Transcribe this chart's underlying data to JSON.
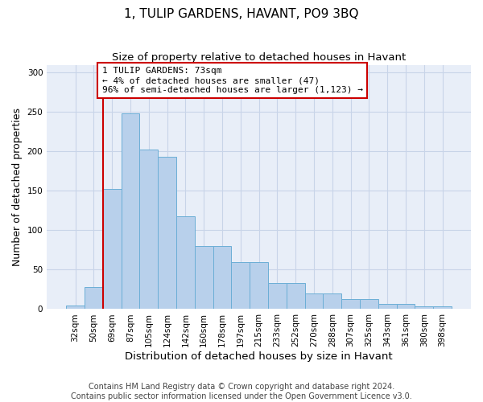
{
  "title": "1, TULIP GARDENS, HAVANT, PO9 3BQ",
  "subtitle": "Size of property relative to detached houses in Havant",
  "xlabel": "Distribution of detached houses by size in Havant",
  "ylabel": "Number of detached properties",
  "categories": [
    "32sqm",
    "50sqm",
    "69sqm",
    "87sqm",
    "105sqm",
    "124sqm",
    "142sqm",
    "160sqm",
    "178sqm",
    "197sqm",
    "215sqm",
    "233sqm",
    "252sqm",
    "270sqm",
    "288sqm",
    "307sqm",
    "325sqm",
    "343sqm",
    "361sqm",
    "380sqm",
    "398sqm"
  ],
  "values": [
    5,
    28,
    152,
    248,
    202,
    193,
    118,
    80,
    80,
    60,
    60,
    33,
    33,
    20,
    20,
    13,
    13,
    7,
    7,
    4,
    4
  ],
  "bar_color": "#b8d0eb",
  "bar_edge_color": "#6baed6",
  "property_line_index": 2,
  "property_line_color": "#cc0000",
  "annotation_line1": "1 TULIP GARDENS: 73sqm",
  "annotation_line2": "← 4% of detached houses are smaller (47)",
  "annotation_line3": "96% of semi-detached houses are larger (1,123) →",
  "annotation_box_color": "#ffffff",
  "annotation_box_edge": "#cc0000",
  "ylim": [
    0,
    310
  ],
  "yticks": [
    0,
    50,
    100,
    150,
    200,
    250,
    300
  ],
  "grid_color": "#c8d4e8",
  "background_color": "#e8eef8",
  "footer_line1": "Contains HM Land Registry data © Crown copyright and database right 2024.",
  "footer_line2": "Contains public sector information licensed under the Open Government Licence v3.0.",
  "title_fontsize": 11,
  "subtitle_fontsize": 9.5,
  "xlabel_fontsize": 9.5,
  "ylabel_fontsize": 9,
  "tick_fontsize": 7.5,
  "annotation_fontsize": 8,
  "footer_fontsize": 7
}
